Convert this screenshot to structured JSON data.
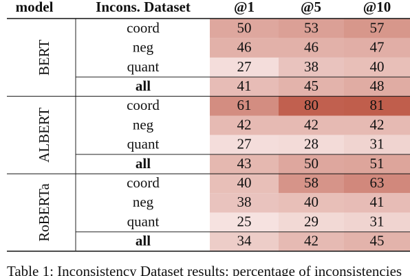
{
  "header": [
    "model",
    "Incons. Dataset",
    "@1",
    "@5",
    "@10"
  ],
  "groups": [
    {
      "model": "BERT",
      "rows": [
        {
          "dataset": "coord",
          "values": [
            50,
            53,
            57
          ]
        },
        {
          "dataset": "neg",
          "values": [
            46,
            46,
            47
          ]
        },
        {
          "dataset": "quant",
          "values": [
            27,
            38,
            40
          ]
        },
        {
          "dataset": "all",
          "values": [
            41,
            45,
            48
          ]
        }
      ]
    },
    {
      "model": "ALBERT",
      "rows": [
        {
          "dataset": "coord",
          "values": [
            61,
            80,
            81
          ]
        },
        {
          "dataset": "neg",
          "values": [
            42,
            42,
            42
          ]
        },
        {
          "dataset": "quant",
          "values": [
            27,
            28,
            31
          ]
        },
        {
          "dataset": "all",
          "values": [
            43,
            50,
            51
          ]
        }
      ]
    },
    {
      "model": "RoBERTa",
      "rows": [
        {
          "dataset": "coord",
          "values": [
            40,
            58,
            63
          ]
        },
        {
          "dataset": "neg",
          "values": [
            38,
            40,
            41
          ]
        },
        {
          "dataset": "quant",
          "values": [
            25,
            29,
            31
          ]
        },
        {
          "dataset": "all",
          "values": [
            34,
            42,
            45
          ]
        }
      ]
    }
  ],
  "caption": "Table 1: Inconsistency Dataset results: percentage of inconsistencies"
}
